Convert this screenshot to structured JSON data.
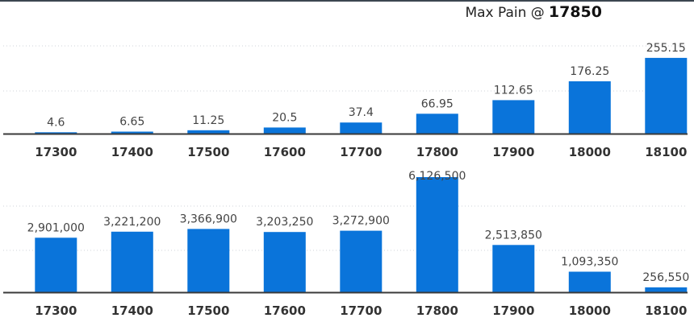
{
  "header": {
    "label": "Max Pain @",
    "value": "17850"
  },
  "colors": {
    "bar": "#0a74da",
    "axis": "#3a3a3a",
    "grid": "#cfd3d8",
    "value_label": "#444444",
    "tick_label": "#333333"
  },
  "chart_data": [
    {
      "type": "bar",
      "categories": [
        "17300",
        "17400",
        "17500",
        "17600",
        "17700",
        "17800",
        "17900",
        "18000",
        "18100"
      ],
      "values": [
        4.6,
        6.65,
        11.25,
        20.5,
        37.4,
        66.95,
        112.65,
        176.25,
        255.15
      ],
      "value_labels": [
        "4.6",
        "6.65",
        "11.25",
        "20.5",
        "37.4",
        "66.95",
        "112.65",
        "176.25",
        "255.15"
      ],
      "title": "",
      "xlabel": "",
      "ylabel": "",
      "ylim": [
        0,
        450
      ],
      "grid": true,
      "legend": "none"
    },
    {
      "type": "bar",
      "categories": [
        "17300",
        "17400",
        "17500",
        "17600",
        "17700",
        "17800",
        "17900",
        "18000",
        "18100"
      ],
      "values": [
        2901000,
        3221200,
        3366900,
        3203250,
        3272900,
        6126500,
        2513850,
        1093350,
        256550
      ],
      "value_labels": [
        "2,901,000",
        "3,221,200",
        "3,366,900",
        "3,203,250",
        "3,272,900",
        "6,126,500",
        "2,513,850",
        "1,093,350",
        "256,550"
      ],
      "title": "",
      "xlabel": "",
      "ylabel": "",
      "ylim": [
        0,
        6126500
      ],
      "grid": true,
      "legend": "none"
    }
  ]
}
